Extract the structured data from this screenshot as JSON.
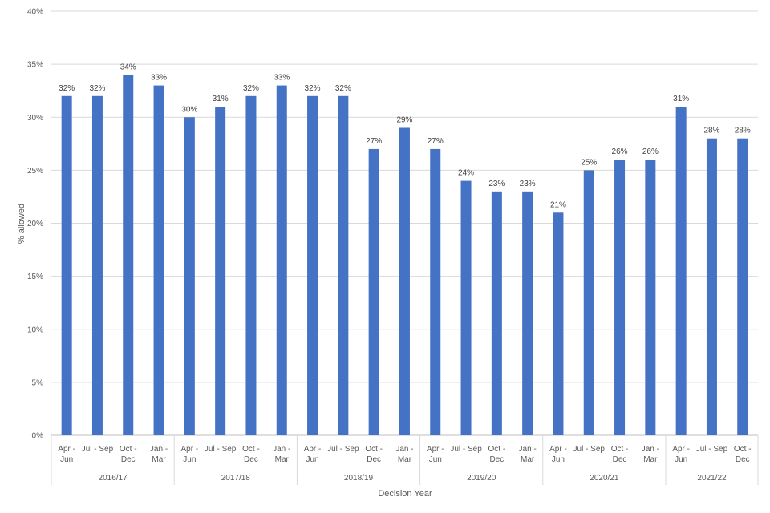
{
  "chart_data": {
    "type": "bar",
    "title": "",
    "xlabel": "Decision Year",
    "ylabel": "% allowed",
    "ylim": [
      0,
      40
    ],
    "yticks": [
      "0%",
      "5%",
      "10%",
      "15%",
      "20%",
      "25%",
      "30%",
      "35%",
      "40%"
    ],
    "grid": true,
    "legend": "none",
    "bar_color": "#4472c4",
    "groups": [
      {
        "label": "2016/17",
        "categories": [
          [
            "Apr -",
            "Jun"
          ],
          [
            "Jul - Sep"
          ],
          [
            "Oct -",
            "Dec"
          ],
          [
            "Jan -",
            "Mar"
          ]
        ]
      },
      {
        "label": "2017/18",
        "categories": [
          [
            "Apr -",
            "Jun"
          ],
          [
            "Jul - Sep"
          ],
          [
            "Oct -",
            "Dec"
          ],
          [
            "Jan -",
            "Mar"
          ]
        ]
      },
      {
        "label": "2018/19",
        "categories": [
          [
            "Apr -",
            "Jun"
          ],
          [
            "Jul - Sep"
          ],
          [
            "Oct -",
            "Dec"
          ],
          [
            "Jan -",
            "Mar"
          ]
        ]
      },
      {
        "label": "2019/20",
        "categories": [
          [
            "Apr -",
            "Jun"
          ],
          [
            "Jul - Sep"
          ],
          [
            "Oct -",
            "Dec"
          ],
          [
            "Jan -",
            "Mar"
          ]
        ]
      },
      {
        "label": "2020/21",
        "categories": [
          [
            "Apr -",
            "Jun"
          ],
          [
            "Jul - Sep"
          ],
          [
            "Oct -",
            "Dec"
          ],
          [
            "Jan -",
            "Mar"
          ]
        ]
      },
      {
        "label": "2021/22",
        "categories": [
          [
            "Apr -",
            "Jun"
          ],
          [
            "Jul - Sep"
          ],
          [
            "Oct -",
            "Dec"
          ]
        ]
      }
    ],
    "values": [
      32,
      32,
      34,
      33,
      30,
      31,
      32,
      33,
      32,
      32,
      27,
      29,
      27,
      24,
      23,
      23,
      21,
      25,
      26,
      26,
      31,
      28,
      28
    ],
    "data_labels": [
      "32%",
      "32%",
      "34%",
      "33%",
      "30%",
      "31%",
      "32%",
      "33%",
      "32%",
      "32%",
      "27%",
      "29%",
      "27%",
      "24%",
      "23%",
      "23%",
      "21%",
      "25%",
      "26%",
      "26%",
      "31%",
      "28%",
      "28%"
    ]
  }
}
